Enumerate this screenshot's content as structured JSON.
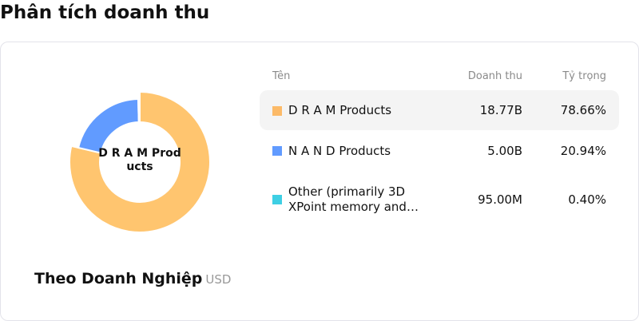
{
  "title": "Phân tích doanh thu",
  "subtitle": "Theo Doanh Nghiệp",
  "unit": "USD",
  "table": {
    "headers": [
      "Tên",
      "Doanh thu",
      "Tỷ trọng"
    ]
  },
  "chart_data": {
    "type": "pie",
    "donut": true,
    "center_label": "D R A M Products",
    "active_index": 0,
    "slices": [
      {
        "label": "D R A M Products",
        "value_text": "18.77B",
        "value": 18.77,
        "percent": 78.66,
        "percent_text": "78.66%",
        "color": "#FFC56F",
        "legend_color": "#FCBA68"
      },
      {
        "label": "N A N D Products",
        "value_text": "5.00B",
        "value": 5.0,
        "percent": 20.94,
        "percent_text": "20.94%",
        "color": "#619BFF",
        "legend_color": "#619BFF"
      },
      {
        "label": "Other (primarily 3D XPoint memory and…",
        "value_text": "95.00M",
        "value": 0.095,
        "percent": 0.4,
        "percent_text": "0.40%",
        "color": "#3ECFE4",
        "legend_color": "#3ECFE4"
      }
    ]
  }
}
